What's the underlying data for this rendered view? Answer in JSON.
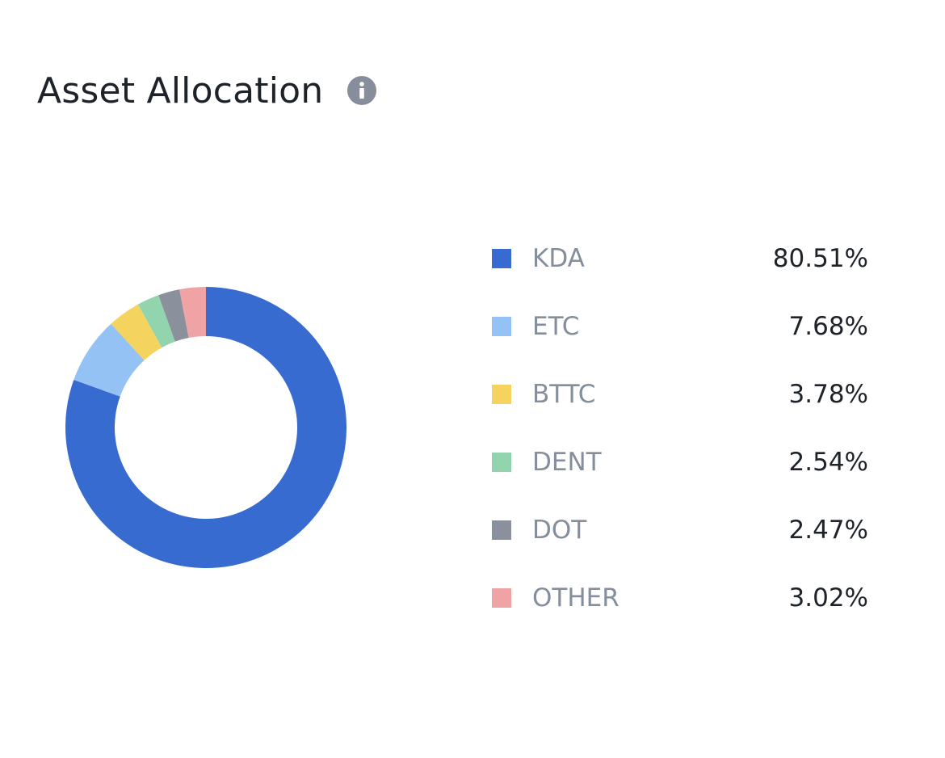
{
  "header": {
    "title": "Asset Allocation",
    "info_icon": "info-circle-icon"
  },
  "colors": {
    "title": "#1e2329",
    "label": "#848e9c",
    "value": "#1e2329",
    "info_icon": "#868e9b"
  },
  "chart_data": {
    "type": "pie",
    "variant": "donut",
    "title": "Asset Allocation",
    "legend_position": "right",
    "slices": [
      {
        "label": "KDA",
        "value": 80.51,
        "display": "80.51%",
        "color": "#376bd0"
      },
      {
        "label": "ETC",
        "value": 7.68,
        "display": "7.68%",
        "color": "#94c2f5"
      },
      {
        "label": "BTTC",
        "value": 3.78,
        "display": "3.78%",
        "color": "#f4d35e"
      },
      {
        "label": "DENT",
        "value": 2.54,
        "display": "2.54%",
        "color": "#91d4ae"
      },
      {
        "label": "DOT",
        "value": 2.47,
        "display": "2.47%",
        "color": "#8a919d"
      },
      {
        "label": "OTHER",
        "value": 3.02,
        "display": "3.02%",
        "color": "#f0a3a5"
      }
    ]
  }
}
